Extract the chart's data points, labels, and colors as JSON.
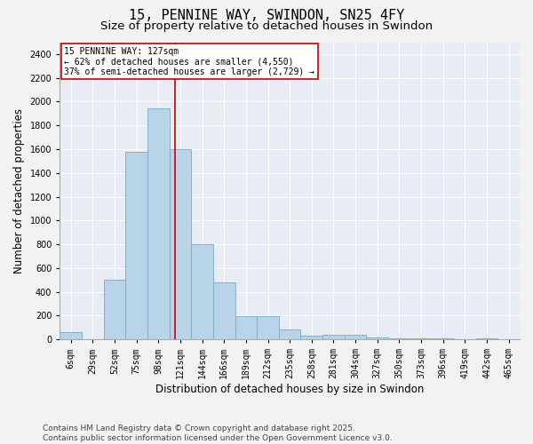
{
  "title_line1": "15, PENNINE WAY, SWINDON, SN25 4FY",
  "title_line2": "Size of property relative to detached houses in Swindon",
  "xlabel": "Distribution of detached houses by size in Swindon",
  "ylabel": "Number of detached properties",
  "footer_line1": "Contains HM Land Registry data © Crown copyright and database right 2025.",
  "footer_line2": "Contains public sector information licensed under the Open Government Licence v3.0.",
  "categories": [
    "6sqm",
    "29sqm",
    "52sqm",
    "75sqm",
    "98sqm",
    "121sqm",
    "144sqm",
    "166sqm",
    "189sqm",
    "212sqm",
    "235sqm",
    "258sqm",
    "281sqm",
    "304sqm",
    "327sqm",
    "350sqm",
    "373sqm",
    "396sqm",
    "419sqm",
    "442sqm",
    "465sqm"
  ],
  "values": [
    60,
    0,
    500,
    1580,
    1940,
    1600,
    800,
    480,
    195,
    195,
    80,
    30,
    35,
    40,
    15,
    10,
    5,
    5,
    0,
    5,
    0
  ],
  "bar_color": "#b8d4e8",
  "bar_edge_color": "#7aaac8",
  "background_color": "#e8edf5",
  "vline_color": "#cc0000",
  "annotation_text": "15 PENNINE WAY: 127sqm\n← 62% of detached houses are smaller (4,550)\n37% of semi-detached houses are larger (2,729) →",
  "annotation_box_color": "#cc0000",
  "ylim": [
    0,
    2500
  ],
  "yticks": [
    0,
    200,
    400,
    600,
    800,
    1000,
    1200,
    1400,
    1600,
    1800,
    2000,
    2200,
    2400
  ],
  "grid_color": "#ffffff",
  "title_fontsize": 11,
  "subtitle_fontsize": 9.5,
  "axis_label_fontsize": 8.5,
  "tick_fontsize": 7,
  "footer_fontsize": 6.5,
  "annot_fontsize": 7
}
